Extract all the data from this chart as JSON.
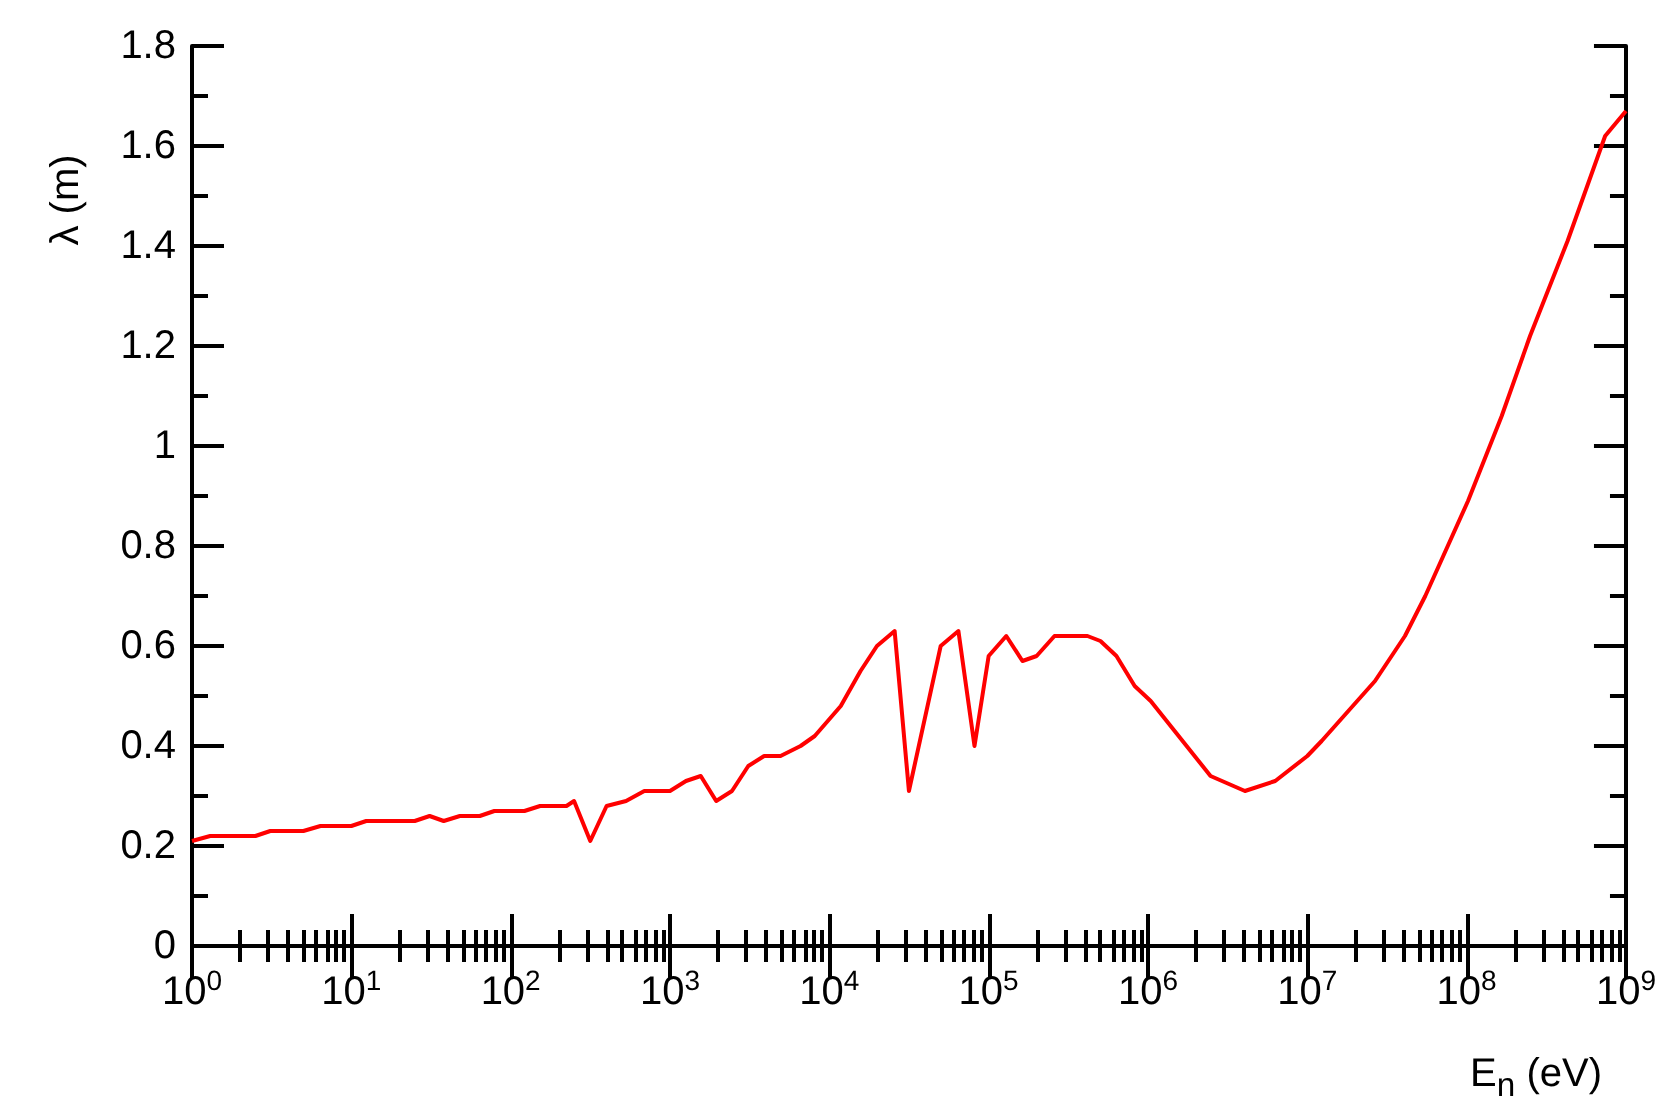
{
  "chart_data": {
    "type": "line",
    "xlabel": "E$_{n}$ (eV)",
    "ylabel": "λ (m)",
    "log": "x",
    "grid": false,
    "marker": "none",
    "line_style": "solid",
    "xlim": [
      1,
      1000000000
    ],
    "xticks": [
      {
        "value": 1,
        "label": "10$^{0}$"
      },
      {
        "value": 10,
        "label": "10$^{1}$"
      },
      {
        "value": 100,
        "label": "10$^{2}$"
      },
      {
        "value": 1000,
        "label": "10$^{3}$"
      },
      {
        "value": 10000,
        "label": "10$^{4}$"
      },
      {
        "value": 100000,
        "label": "10$^{5}$"
      },
      {
        "value": 1000000,
        "label": "10$^{6}$"
      },
      {
        "value": 10000000,
        "label": "10$^{7}$"
      },
      {
        "value": 100000000,
        "label": "10$^{8}$"
      },
      {
        "value": 1000000000,
        "label": "10$^{9}$"
      }
    ],
    "ylim": [
      0,
      1.8
    ],
    "yticks": [
      0,
      0.2,
      0.4,
      0.6,
      0.8,
      1,
      1.2,
      1.4,
      1.6,
      1.8
    ],
    "series": [
      {
        "color": "#ff0000",
        "x": [
          1,
          1.3,
          2.5,
          3.1,
          5,
          6.4,
          10,
          12.4,
          25,
          31,
          38,
          48,
          64,
          79,
          122,
          153,
          224,
          250,
          316,
          400,
          530,
          690,
          1000,
          1260,
          1560,
          1950,
          2450,
          3100,
          3900,
          4940,
          6600,
          8100,
          11800,
          15700,
          19900,
          25700,
          31600,
          50000,
          64600,
          81500,
          100000,
          129000,
          163000,
          200000,
          259000,
          417000,
          503000,
          634000,
          825000,
          1040000,
          2470000,
          4060000,
          6290000,
          10000000,
          12300000,
          26600000,
          41000000,
          55000000,
          102000000,
          166000000,
          250000000,
          430000000,
          740000000,
          1000000000
        ],
        "values": [
          0.21,
          0.22,
          0.22,
          0.23,
          0.23,
          0.24,
          0.24,
          0.25,
          0.25,
          0.26,
          0.25,
          0.26,
          0.26,
          0.27,
          0.27,
          0.28,
          0.28,
          0.29,
          0.21,
          0.28,
          0.29,
          0.31,
          0.31,
          0.33,
          0.34,
          0.29,
          0.31,
          0.36,
          0.38,
          0.38,
          0.4,
          0.42,
          0.48,
          0.55,
          0.6,
          0.63,
          0.31,
          0.6,
          0.63,
          0.4,
          0.58,
          0.62,
          0.57,
          0.58,
          0.62,
          0.62,
          0.61,
          0.58,
          0.52,
          0.49,
          0.34,
          0.31,
          0.33,
          0.38,
          0.41,
          0.53,
          0.62,
          0.7,
          0.89,
          1.06,
          1.22,
          1.41,
          1.62,
          1.67
        ]
      }
    ]
  }
}
